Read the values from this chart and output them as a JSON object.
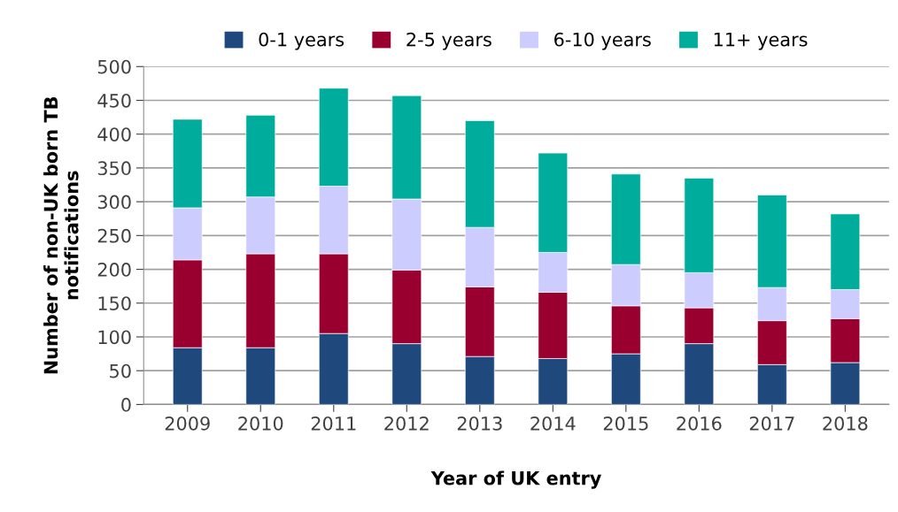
{
  "chart_data": {
    "type": "bar",
    "stacked": true,
    "xlabel": "Year of UK entry",
    "ylabel": "Number of non-UK born TB\nnotifications",
    "categories": [
      "2009",
      "2010",
      "2011",
      "2012",
      "2013",
      "2014",
      "2015",
      "2016",
      "2017",
      "2018"
    ],
    "series": [
      {
        "name": "0-1 years",
        "color": "#1f497d",
        "values": [
          84,
          84,
          105,
          90,
          71,
          68,
          75,
          90,
          59,
          62
        ]
      },
      {
        "name": "2-5 years",
        "color": "#990030",
        "values": [
          130,
          139,
          118,
          109,
          103,
          98,
          71,
          53,
          65,
          65
        ]
      },
      {
        "name": "6-10 years",
        "color": "#ccccff",
        "values": [
          77,
          84,
          100,
          105,
          88,
          59,
          61,
          52,
          49,
          43
        ]
      },
      {
        "name": "11+ years",
        "color": "#00ac9c",
        "values": [
          131,
          121,
          145,
          153,
          158,
          147,
          134,
          140,
          137,
          112
        ]
      }
    ],
    "ylim": [
      0,
      500
    ],
    "yticks": [
      0,
      50,
      100,
      150,
      200,
      250,
      300,
      350,
      400,
      450,
      500
    ],
    "grid": "y",
    "legend": "top"
  }
}
